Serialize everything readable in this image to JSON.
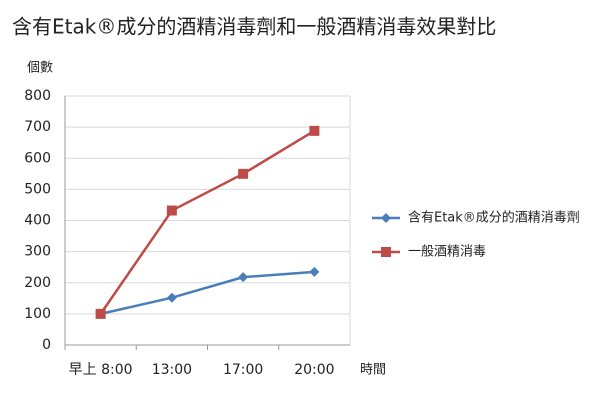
{
  "chart_data": {
    "type": "line",
    "title": "含有Etak®成分的酒精消毒劑和一般酒精消毒效果對比",
    "y_label": "個數",
    "x_label": "時間",
    "categories": [
      "早上 8:00",
      "13:00",
      "17:00",
      "20:00"
    ],
    "series": [
      {
        "name": "含有Etak®成分的酒精消毒劑",
        "color": "#4a7ebb",
        "marker": "diamond",
        "values": [
          100,
          152,
          218,
          235
        ]
      },
      {
        "name": "一般酒精消毒",
        "color": "#be4b48",
        "marker": "square",
        "values": [
          100,
          432,
          550,
          688
        ]
      }
    ],
    "ylim": [
      0,
      800
    ],
    "yticks": [
      0,
      100,
      200,
      300,
      400,
      500,
      600,
      700,
      800
    ],
    "grid": true,
    "legend": "right"
  }
}
